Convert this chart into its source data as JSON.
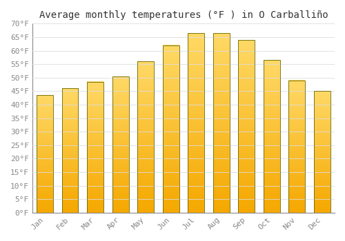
{
  "title": "Average monthly temperatures (°F ) in O Carballiño",
  "months": [
    "Jan",
    "Feb",
    "Mar",
    "Apr",
    "May",
    "Jun",
    "Jul",
    "Aug",
    "Sep",
    "Oct",
    "Nov",
    "Dec"
  ],
  "values": [
    43.5,
    46.0,
    48.5,
    50.5,
    56.0,
    62.0,
    66.5,
    66.5,
    64.0,
    56.5,
    49.0,
    45.0
  ],
  "bar_color_bottom": "#F5A800",
  "bar_color_top": "#FFD966",
  "bar_edge_color": "#888800",
  "background_color": "#FFFFFF",
  "grid_color": "#DDDDDD",
  "ylim": [
    0,
    70
  ],
  "yticks": [
    0,
    5,
    10,
    15,
    20,
    25,
    30,
    35,
    40,
    45,
    50,
    55,
    60,
    65,
    70
  ],
  "ytick_labels": [
    "0°F",
    "5°F",
    "10°F",
    "15°F",
    "20°F",
    "25°F",
    "30°F",
    "35°F",
    "40°F",
    "45°F",
    "50°F",
    "55°F",
    "60°F",
    "65°F",
    "70°F"
  ],
  "title_fontsize": 10,
  "tick_fontsize": 8,
  "tick_color": "#888888",
  "font_family": "monospace",
  "bar_width": 0.65
}
